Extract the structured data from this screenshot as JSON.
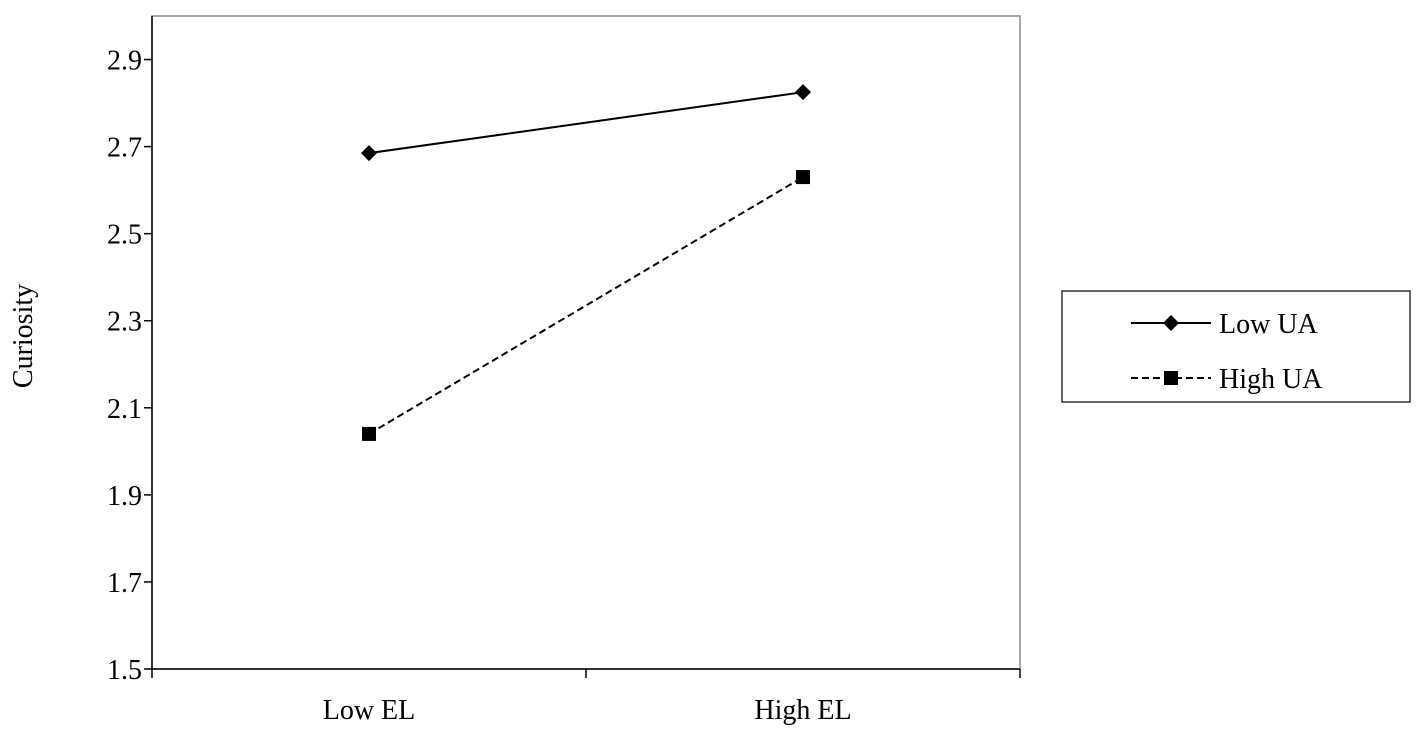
{
  "chart_data": {
    "type": "line",
    "categories": [
      "Low EL",
      "High EL"
    ],
    "series": [
      {
        "name": "Low UA",
        "values": [
          2.685,
          2.825
        ],
        "line_style": "solid",
        "marker": "diamond",
        "color": "#000000"
      },
      {
        "name": "High UA",
        "values": [
          2.04,
          2.63
        ],
        "line_style": "dashed",
        "marker": "square",
        "color": "#000000"
      }
    ],
    "title": "",
    "xlabel": "",
    "ylabel": "Curiosity",
    "ylim": [
      1.5,
      3.0
    ],
    "yticks": [
      1.5,
      1.7,
      1.9,
      2.1,
      2.3,
      2.5,
      2.7,
      2.9
    ],
    "ytick_labels": [
      "1.5",
      "1.7",
      "1.9",
      "2.1",
      "2.3",
      "2.5",
      "2.7",
      "2.9"
    ],
    "grid": false,
    "legend_position": "right"
  }
}
